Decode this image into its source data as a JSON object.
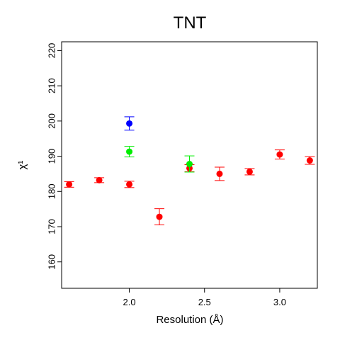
{
  "chart_data": {
    "type": "scatter",
    "title": "TNT",
    "xlabel": "Resolution (Å)",
    "ylabel": "χ¹",
    "xlim": [
      1.55,
      3.25
    ],
    "ylim": [
      152.5,
      222.5
    ],
    "x_ticks": [
      2.0,
      2.5,
      3.0
    ],
    "x_tick_labels": [
      "2.0",
      "2.5",
      "3.0"
    ],
    "y_ticks": [
      160,
      170,
      180,
      190,
      200,
      210,
      220
    ],
    "y_tick_labels": [
      "160",
      "170",
      "180",
      "190",
      "200",
      "210",
      "220"
    ],
    "grid": false,
    "legend": "none",
    "error_bars": true,
    "series": [
      {
        "color": "#ff0000",
        "points": [
          {
            "x": 1.6,
            "y": 182.0,
            "err": 0.8
          },
          {
            "x": 1.8,
            "y": 183.2,
            "err": 0.7
          },
          {
            "x": 2.0,
            "y": 182.0,
            "err": 0.9
          },
          {
            "x": 2.2,
            "y": 172.8,
            "err": 2.3
          },
          {
            "x": 2.4,
            "y": 186.6,
            "err": 1.0
          },
          {
            "x": 2.6,
            "y": 185.0,
            "err": 1.9
          },
          {
            "x": 2.8,
            "y": 185.6,
            "err": 0.9
          },
          {
            "x": 3.0,
            "y": 190.5,
            "err": 1.3
          },
          {
            "x": 3.2,
            "y": 188.8,
            "err": 1.1
          }
        ]
      },
      {
        "color": "#00ee00",
        "points": [
          {
            "x": 2.0,
            "y": 191.3,
            "err": 1.5
          },
          {
            "x": 2.4,
            "y": 187.8,
            "err": 2.3
          }
        ]
      },
      {
        "color": "#0000ff",
        "points": [
          {
            "x": 2.0,
            "y": 199.3,
            "err": 1.9
          }
        ]
      }
    ]
  }
}
